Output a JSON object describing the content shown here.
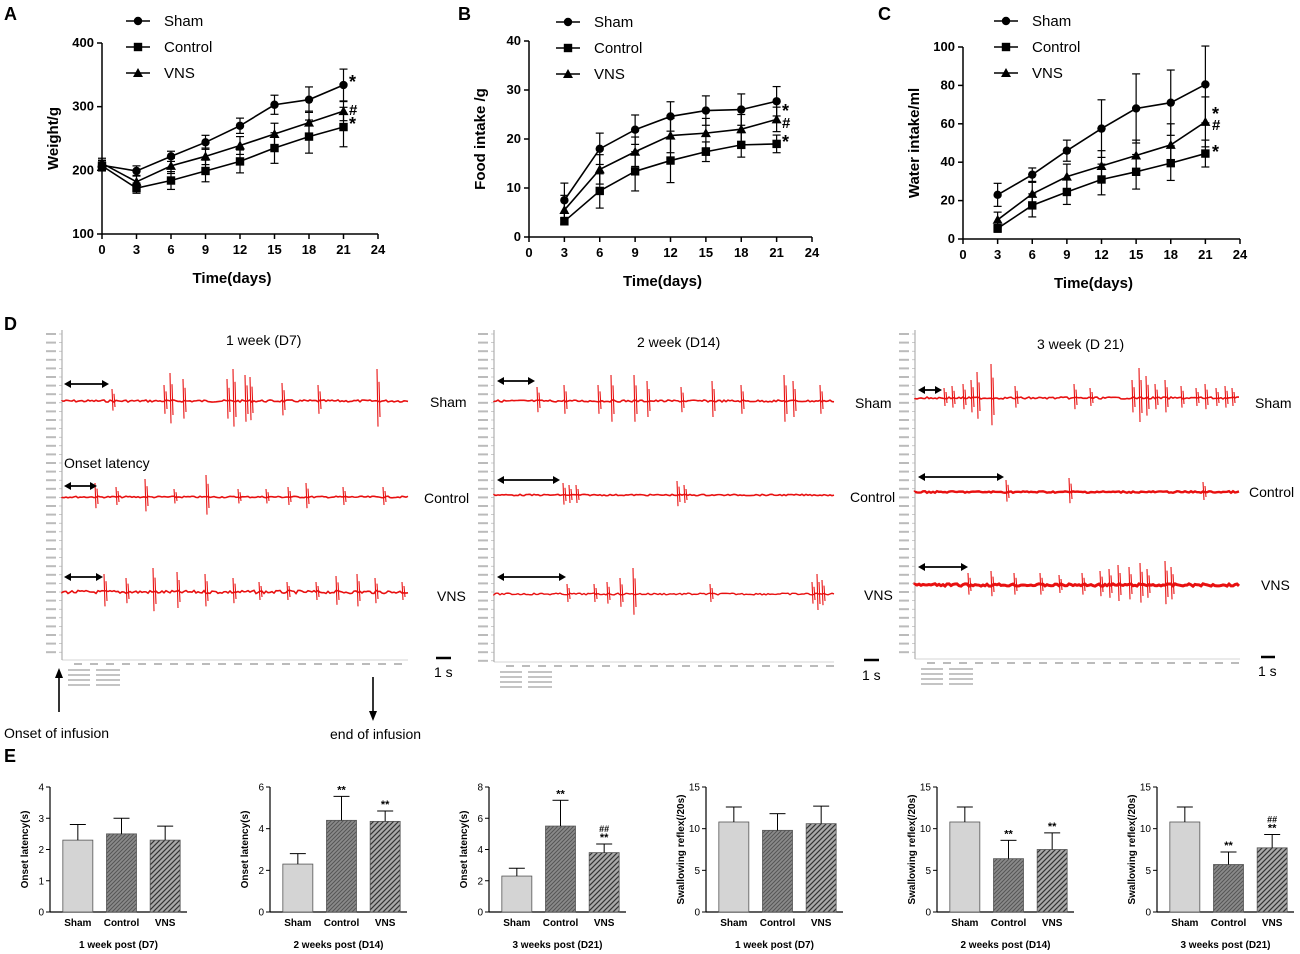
{
  "figure_title": "Body weight, food and water intake, swallowing EMG recordings and bar charts for Sham, Control and VNS groups",
  "panel_labels": [
    "A",
    "B",
    "C",
    "D",
    "E"
  ],
  "chart_data": [
    {
      "id": "A",
      "type": "line",
      "ylabel": "Weight/g",
      "xlabel": "Time(days)",
      "ylim": [
        100,
        400
      ],
      "yticks": [
        100,
        200,
        300,
        400
      ],
      "xlim": [
        0,
        24
      ],
      "xticks": [
        0,
        3,
        6,
        9,
        12,
        15,
        18,
        21,
        24
      ],
      "series": [
        {
          "name": "Sham",
          "marker": "circle",
          "x": [
            0,
            3,
            6,
            9,
            12,
            15,
            18,
            21
          ],
          "y": [
            208,
            199,
            222,
            244,
            270,
            303,
            311,
            334
          ],
          "err": [
            8,
            8,
            8,
            11,
            12,
            15,
            20,
            25
          ]
        },
        {
          "name": "Control",
          "marker": "square",
          "x": [
            0,
            3,
            6,
            9,
            12,
            15,
            18,
            21
          ],
          "y": [
            207,
            172,
            184,
            199,
            214,
            235,
            253,
            268
          ],
          "err": [
            8,
            8,
            14,
            17,
            18,
            24,
            26,
            31
          ]
        },
        {
          "name": "VNS",
          "marker": "triangle",
          "x": [
            0,
            3,
            6,
            9,
            12,
            15,
            18,
            21
          ],
          "y": [
            211,
            182,
            207,
            222,
            239,
            257,
            275,
            293
          ],
          "err": [
            8,
            10,
            12,
            13,
            14,
            17,
            18,
            15
          ]
        }
      ],
      "annotations": [
        "*",
        "#",
        "*"
      ]
    },
    {
      "id": "B",
      "type": "line",
      "ylabel": "Food intake /g",
      "xlabel": "Time(days)",
      "ylim": [
        0,
        40
      ],
      "yticks": [
        0,
        10,
        20,
        30,
        40
      ],
      "xlim": [
        0,
        24
      ],
      "xticks": [
        0,
        3,
        6,
        9,
        12,
        15,
        18,
        21,
        24
      ],
      "series": [
        {
          "name": "Sham",
          "marker": "circle",
          "x": [
            3,
            6,
            9,
            12,
            15,
            18,
            21
          ],
          "y": [
            7.5,
            18,
            21.9,
            24.6,
            25.8,
            26,
            27.7
          ],
          "err": [
            3.5,
            3.2,
            3.0,
            3.0,
            3.0,
            3.2,
            3.0
          ]
        },
        {
          "name": "Control",
          "marker": "square",
          "x": [
            3,
            6,
            9,
            12,
            15,
            18,
            21
          ],
          "y": [
            3.2,
            9.4,
            13.4,
            15.6,
            17.4,
            18.8,
            19.0
          ],
          "err": [
            0.5,
            3.5,
            4.0,
            4.5,
            2.0,
            2.5,
            1.8
          ]
        },
        {
          "name": "VNS",
          "marker": "triangle",
          "x": [
            3,
            6,
            9,
            12,
            15,
            18,
            21
          ],
          "y": [
            5.5,
            13.8,
            17.4,
            20.7,
            21.2,
            22.0,
            24.0
          ],
          "err": [
            3.0,
            3.0,
            3.0,
            3.5,
            3.0,
            3.0,
            2.5
          ]
        }
      ],
      "annotations": [
        "*",
        "#",
        "*"
      ]
    },
    {
      "id": "C",
      "type": "line",
      "ylabel": "Water intake/ml",
      "xlabel": "Time(days)",
      "ylim": [
        0,
        100
      ],
      "yticks": [
        0,
        20,
        40,
        60,
        80,
        100
      ],
      "xlim": [
        0,
        24
      ],
      "xticks": [
        0,
        3,
        6,
        9,
        12,
        15,
        18,
        21,
        24
      ],
      "series": [
        {
          "name": "Sham",
          "marker": "circle",
          "x": [
            3,
            6,
            9,
            12,
            15,
            18,
            21
          ],
          "y": [
            23,
            33.5,
            46,
            57.5,
            68,
            71,
            80.5
          ],
          "err": [
            6,
            3.5,
            5.5,
            15,
            18,
            17,
            20
          ]
        },
        {
          "name": "Control",
          "marker": "square",
          "x": [
            3,
            6,
            9,
            12,
            15,
            18,
            21
          ],
          "y": [
            5.5,
            17.5,
            24.5,
            31,
            35,
            39.5,
            44.5
          ],
          "err": [
            2,
            6,
            6.5,
            8,
            9,
            9,
            7
          ]
        },
        {
          "name": "VNS",
          "marker": "triangle",
          "x": [
            3,
            6,
            9,
            12,
            15,
            18,
            21
          ],
          "y": [
            10,
            23.5,
            32.5,
            38,
            43.5,
            49,
            61
          ],
          "err": [
            4,
            6,
            6.5,
            8,
            8,
            11,
            13
          ]
        }
      ],
      "annotations": [
        "*",
        "#",
        "*"
      ]
    },
    {
      "id": "E1",
      "type": "bar",
      "ylabel": "Onset latency(s)",
      "xlabel": "1 week post (D7)",
      "categories": [
        "Sham",
        "Control",
        "VNS"
      ],
      "ylim": [
        0,
        4
      ],
      "yticks": [
        0,
        1,
        2,
        3,
        4
      ],
      "values": [
        2.3,
        2.5,
        2.3
      ],
      "err": [
        0.5,
        0.5,
        0.45
      ],
      "sig": [
        [
          "",
          ""
        ],
        [
          "",
          ""
        ],
        [
          "",
          ""
        ]
      ]
    },
    {
      "id": "E2",
      "type": "bar",
      "ylabel": "Onset latency(s)",
      "xlabel": "2 weeks post (D14)",
      "categories": [
        "Sham",
        "Control",
        "VNS"
      ],
      "ylim": [
        0,
        6
      ],
      "yticks": [
        0,
        2,
        4,
        6
      ],
      "values": [
        2.3,
        4.4,
        4.35
      ],
      "err": [
        0.5,
        1.15,
        0.5
      ],
      "sig": [
        [
          "",
          ""
        ],
        [
          "**",
          ""
        ],
        [
          "**",
          ""
        ]
      ]
    },
    {
      "id": "E3",
      "type": "bar",
      "ylabel": "Onset latency(s)",
      "xlabel": "3 weeks post (D21)",
      "categories": [
        "Sham",
        "Control",
        "VNS"
      ],
      "ylim": [
        0,
        8
      ],
      "yticks": [
        0,
        2,
        4,
        6,
        8
      ],
      "values": [
        2.3,
        5.5,
        3.8
      ],
      "err": [
        0.5,
        1.65,
        0.55
      ],
      "sig": [
        [
          "",
          ""
        ],
        [
          "**",
          ""
        ],
        [
          "**",
          "##"
        ]
      ]
    },
    {
      "id": "E4",
      "type": "bar",
      "ylabel": "Swallowing reflex(/20s)",
      "xlabel": "1 week post (D7)",
      "categories": [
        "Sham",
        "Control",
        "VNS"
      ],
      "ylim": [
        0,
        15
      ],
      "yticks": [
        0,
        5,
        10,
        15
      ],
      "values": [
        10.8,
        9.8,
        10.6
      ],
      "err": [
        1.8,
        2.0,
        2.1
      ],
      "sig": [
        [
          "",
          ""
        ],
        [
          "",
          ""
        ],
        [
          "",
          ""
        ]
      ]
    },
    {
      "id": "E5",
      "type": "bar",
      "ylabel": "Swallowing reflex(/20s)",
      "xlabel": "2 weeks post (D14)",
      "categories": [
        "Sham",
        "Control",
        "VNS"
      ],
      "ylim": [
        0,
        15
      ],
      "yticks": [
        0,
        5,
        10,
        15
      ],
      "values": [
        10.8,
        6.4,
        7.5
      ],
      "err": [
        1.8,
        2.2,
        2.0
      ],
      "sig": [
        [
          "",
          ""
        ],
        [
          "**",
          ""
        ],
        [
          "**",
          ""
        ]
      ]
    },
    {
      "id": "E6",
      "type": "bar",
      "ylabel": "Swallowing reflex(/20s)",
      "xlabel": "3 weeks post (D21)",
      "categories": [
        "Sham",
        "Control",
        "VNS"
      ],
      "ylim": [
        0,
        15
      ],
      "yticks": [
        0,
        5,
        10,
        15
      ],
      "values": [
        10.8,
        5.7,
        7.7
      ],
      "err": [
        1.8,
        1.5,
        1.6
      ],
      "sig": [
        [
          "",
          ""
        ],
        [
          "**",
          ""
        ],
        [
          "**",
          "##"
        ]
      ]
    }
  ],
  "recordings": {
    "panels": [
      {
        "title": "1 week (D7)",
        "rows": [
          "Sham",
          "Control",
          "VNS"
        ],
        "scale": "1 s",
        "onset_label": "Onset latency"
      },
      {
        "title": "2 week (D14)",
        "rows": [
          "",
          "Control",
          ""
        ],
        "scale": "1 s"
      },
      {
        "title": "3 week (D 21)",
        "rows": [
          "Sham",
          "Control",
          "VNS"
        ],
        "scale": "1 s"
      }
    ],
    "left_row_labels_panel3": [
      "Sham",
      "Control",
      "VNS"
    ],
    "onset_of_infusion": "Onset of infusion",
    "end_of_infusion": "end of infusion",
    "trace_color": "#e81010"
  }
}
